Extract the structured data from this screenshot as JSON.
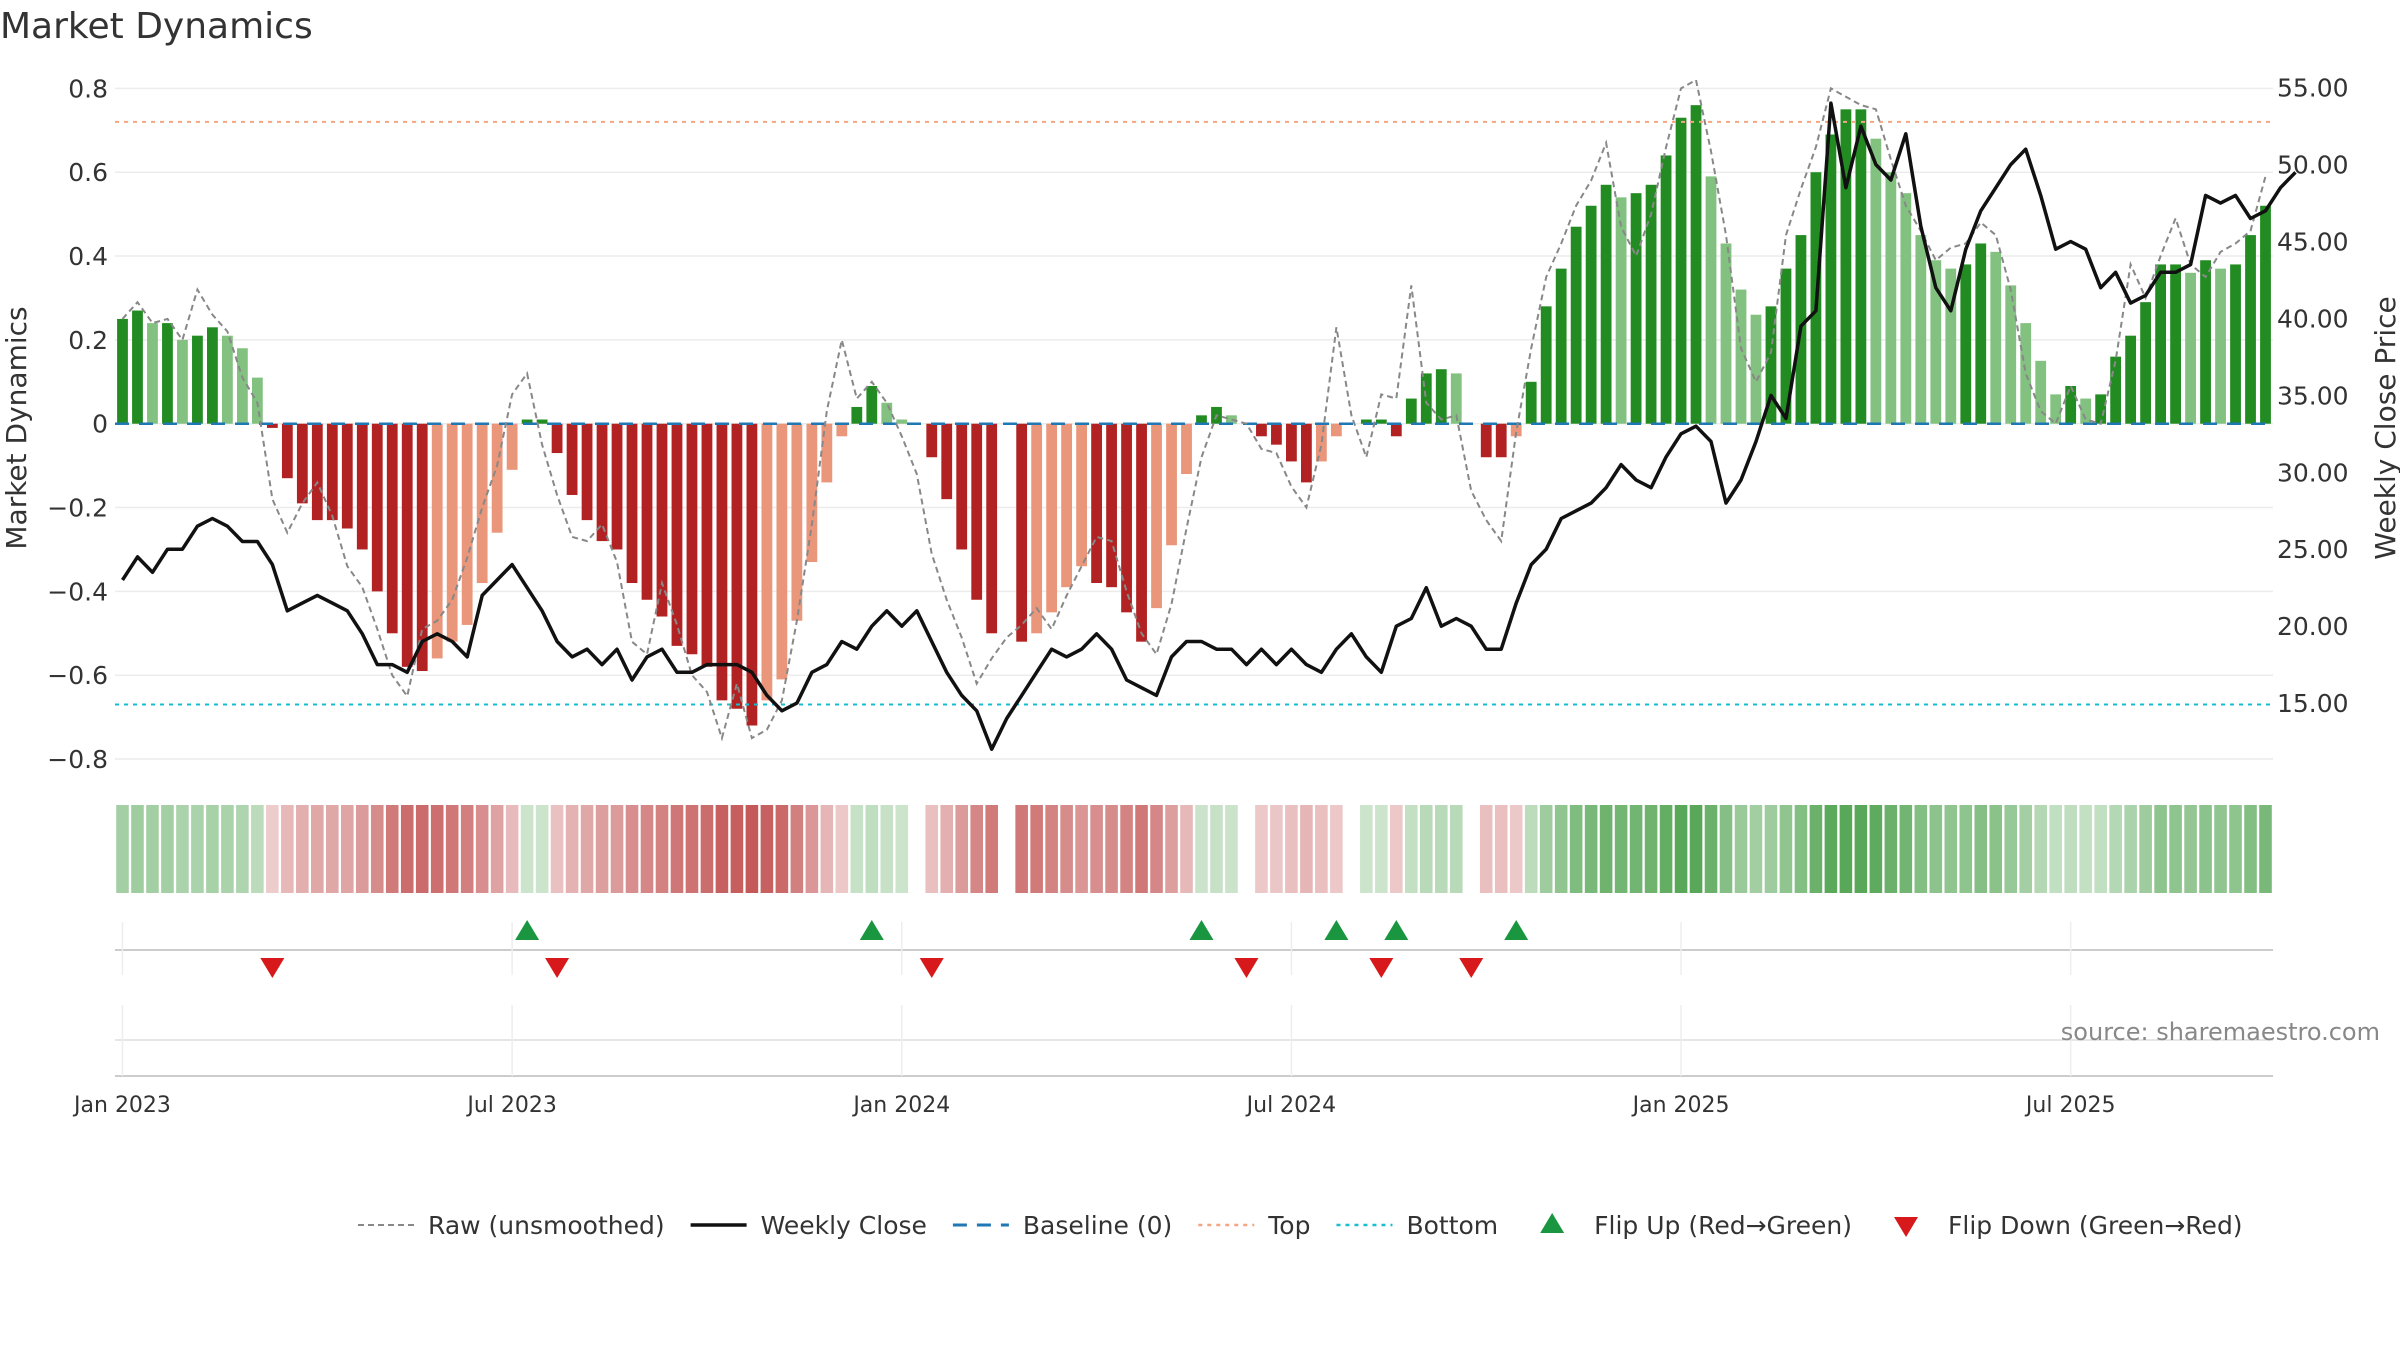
{
  "chart_data": {
    "type": "bar",
    "title": "Market Dynamics",
    "ylabel_left": "Market Dynamics",
    "ylabel_right": "Weekly Close Price",
    "ylim_left": [
      -0.85,
      0.82
    ],
    "ylim_right": [
      10,
      55.5
    ],
    "left_ticks": [
      {
        "v": 0.8,
        "label": "0.8"
      },
      {
        "v": 0.6,
        "label": "0.6"
      },
      {
        "v": 0.4,
        "label": "0.4"
      },
      {
        "v": 0.2,
        "label": "0.2"
      },
      {
        "v": 0,
        "label": "0"
      },
      {
        "v": -0.2,
        "label": "−0.2"
      },
      {
        "v": -0.4,
        "label": "−0.4"
      },
      {
        "v": -0.6,
        "label": "−0.6"
      },
      {
        "v": -0.8,
        "label": "−0.8"
      }
    ],
    "right_ticks": [
      {
        "v": 55,
        "label": "55.00"
      },
      {
        "v": 50,
        "label": "50.00"
      },
      {
        "v": 45,
        "label": "45.00"
      },
      {
        "v": 40,
        "label": "40.00"
      },
      {
        "v": 35,
        "label": "35.00"
      },
      {
        "v": 30,
        "label": "30.00"
      },
      {
        "v": 25,
        "label": "25.00"
      },
      {
        "v": 20,
        "label": "20.00"
      },
      {
        "v": 15,
        "label": "15.00"
      }
    ],
    "x_ticks": [
      {
        "week": 1,
        "label": "Jan 2023"
      },
      {
        "week": 27,
        "label": "Jul 2023"
      },
      {
        "week": 53,
        "label": "Jan 2024"
      },
      {
        "week": 79,
        "label": "Jul 2024"
      },
      {
        "week": 105,
        "label": "Jan 2025"
      },
      {
        "week": 131,
        "label": "Jul 2025"
      }
    ],
    "top_threshold": 0.72,
    "bottom_threshold": -0.67,
    "baseline": 0,
    "colors": {
      "strong_green": "#228b22",
      "light_green": "#82c17f",
      "strong_red": "#b22222",
      "light_red": "#e9967a",
      "close": "#111111",
      "raw": "#888888",
      "baseline": "#1f77b4",
      "top": "#f4a582",
      "bottom": "#17becf",
      "flip_up": "#1a9641",
      "flip_down": "#d7191c"
    },
    "weeks": 144,
    "dynamics": [
      0.25,
      0.27,
      0.24,
      0.24,
      0.2,
      0.21,
      0.23,
      0.21,
      0.18,
      0.11,
      -0.01,
      -0.13,
      -0.19,
      -0.23,
      -0.23,
      -0.25,
      -0.3,
      -0.4,
      -0.5,
      -0.58,
      -0.59,
      -0.56,
      -0.52,
      -0.48,
      -0.38,
      -0.26,
      -0.11,
      0.01,
      0.01,
      -0.07,
      -0.17,
      -0.23,
      -0.28,
      -0.3,
      -0.38,
      -0.42,
      -0.46,
      -0.53,
      -0.55,
      -0.58,
      -0.66,
      -0.68,
      -0.72,
      -0.66,
      -0.61,
      -0.47,
      -0.33,
      -0.14,
      -0.03,
      0.04,
      0.09,
      0.05,
      0.01,
      0,
      -0.08,
      -0.18,
      -0.3,
      -0.42,
      -0.5,
      0,
      -0.52,
      -0.5,
      -0.45,
      -0.39,
      -0.34,
      -0.38,
      -0.39,
      -0.45,
      -0.52,
      -0.44,
      -0.29,
      -0.12,
      0.02,
      0.04,
      0.02,
      0,
      -0.03,
      -0.05,
      -0.09,
      -0.14,
      -0.09,
      -0.03,
      0,
      0.01,
      0.01,
      -0.03,
      0.06,
      0.12,
      0.13,
      0.12,
      0,
      -0.08,
      -0.08,
      -0.03,
      0.1,
      0.28,
      0.37,
      0.47,
      0.52,
      0.57,
      0.54,
      0.55,
      0.57,
      0.64,
      0.73,
      0.76,
      0.59,
      0.43,
      0.32,
      0.26,
      0.28,
      0.37,
      0.45,
      0.6,
      0.69,
      0.75,
      0.75,
      0.68,
      0.6,
      0.55,
      0.45,
      0.39,
      0.37,
      0.38,
      0.43,
      0.41,
      0.33,
      0.24,
      0.15,
      0.07,
      0.09,
      0.06,
      0.07,
      0.16,
      0.21,
      0.29,
      0.38,
      0.38,
      0.36,
      0.39,
      0.37,
      0.38,
      0.45,
      0.52
    ],
    "raw": [
      0.25,
      0.29,
      0.24,
      0.25,
      0.2,
      0.32,
      0.26,
      0.22,
      0.11,
      0.05,
      -0.18,
      -0.26,
      -0.19,
      -0.14,
      -0.22,
      -0.34,
      -0.39,
      -0.49,
      -0.6,
      -0.65,
      -0.49,
      -0.47,
      -0.42,
      -0.32,
      -0.2,
      -0.1,
      0.07,
      0.12,
      -0.05,
      -0.17,
      -0.27,
      -0.28,
      -0.24,
      -0.33,
      -0.52,
      -0.55,
      -0.38,
      -0.48,
      -0.6,
      -0.64,
      -0.75,
      -0.62,
      -0.75,
      -0.73,
      -0.66,
      -0.47,
      -0.24,
      0.03,
      0.2,
      0.06,
      0.1,
      0.05,
      -0.03,
      -0.12,
      -0.31,
      -0.42,
      -0.51,
      -0.62,
      -0.56,
      -0.51,
      -0.48,
      -0.44,
      -0.49,
      -0.41,
      -0.34,
      -0.27,
      -0.28,
      -0.4,
      -0.5,
      -0.55,
      -0.43,
      -0.25,
      -0.08,
      0.02,
      0.01,
      0,
      -0.06,
      -0.07,
      -0.15,
      -0.2,
      -0.05,
      0.23,
      0.02,
      -0.08,
      0.07,
      0.06,
      0.33,
      0.05,
      0.01,
      0.02,
      -0.16,
      -0.23,
      -0.28,
      -0.02,
      0.18,
      0.35,
      0.43,
      0.52,
      0.58,
      0.67,
      0.47,
      0.4,
      0.5,
      0.66,
      0.8,
      0.82,
      0.65,
      0.45,
      0.18,
      0.1,
      0.17,
      0.45,
      0.56,
      0.66,
      0.8,
      0.78,
      0.76,
      0.75,
      0.63,
      0.52,
      0.46,
      0.39,
      0.42,
      0.43,
      0.48,
      0.45,
      0.32,
      0.12,
      0.03,
      0.0,
      0.09,
      0.01,
      0.0,
      0.15,
      0.38,
      0.3,
      0.4,
      0.49,
      0.38,
      0.35,
      0.41,
      0.43,
      0.46,
      0.59
    ],
    "close": [
      23.0,
      24.5,
      23.5,
      25.0,
      25.0,
      26.5,
      27.0,
      26.5,
      25.5,
      25.5,
      24.0,
      21.0,
      21.5,
      22.0,
      21.5,
      21.0,
      19.5,
      17.5,
      17.5,
      17.0,
      19.0,
      19.5,
      19.0,
      18.0,
      22.0,
      23.0,
      24.0,
      22.5,
      21.0,
      19.0,
      18.0,
      18.5,
      17.5,
      18.5,
      16.5,
      18.0,
      18.5,
      17.0,
      17.0,
      17.5,
      17.5,
      17.5,
      17.0,
      15.5,
      14.5,
      15.0,
      17.0,
      17.5,
      19.0,
      18.5,
      20.0,
      21.0,
      20.0,
      21.0,
      19.0,
      17.0,
      15.5,
      14.5,
      12.0,
      14.0,
      15.5,
      17.0,
      18.5,
      18.0,
      18.5,
      19.5,
      18.5,
      16.5,
      16.0,
      15.5,
      18.0,
      19.0,
      19.0,
      18.5,
      18.5,
      17.5,
      18.5,
      17.5,
      18.5,
      17.5,
      17.0,
      18.5,
      19.5,
      18.0,
      17.0,
      20.0,
      20.5,
      22.5,
      20.0,
      20.5,
      20.0,
      18.5,
      18.5,
      21.5,
      24.0,
      25.0,
      27.0,
      27.5,
      28.0,
      29.0,
      30.5,
      29.5,
      29.0,
      31.0,
      32.5,
      33.0,
      32.0,
      28.0,
      29.5,
      32.0,
      35.0,
      33.5,
      39.5,
      40.5,
      54.0,
      48.5,
      52.5,
      50.0,
      49.0,
      52.0,
      46.0,
      42.0,
      40.5,
      44.5,
      47.0,
      48.5,
      50.0,
      51.0,
      48.0,
      44.5,
      45.0,
      44.5,
      42.0,
      43.0,
      41.0,
      41.5,
      43.0,
      43.0,
      43.5,
      48.0,
      47.5,
      48.0,
      46.5,
      47.0,
      48.5,
      49.5
    ],
    "flip_up_weeks": [
      28,
      51,
      73,
      82,
      86,
      94
    ],
    "flip_down_weeks": [
      11,
      30,
      55,
      76,
      85,
      91
    ],
    "legend": [
      {
        "key": "raw",
        "label": "Raw (unsmoothed)"
      },
      {
        "key": "close",
        "label": "Weekly Close"
      },
      {
        "key": "baseline",
        "label": "Baseline (0)"
      },
      {
        "key": "top",
        "label": "Top"
      },
      {
        "key": "bottom",
        "label": "Bottom"
      },
      {
        "key": "flip_up",
        "label": "Flip Up (Red→Green)"
      },
      {
        "key": "flip_down",
        "label": "Flip Down (Green→Red)"
      }
    ],
    "source": "source: sharemaestro.com"
  }
}
